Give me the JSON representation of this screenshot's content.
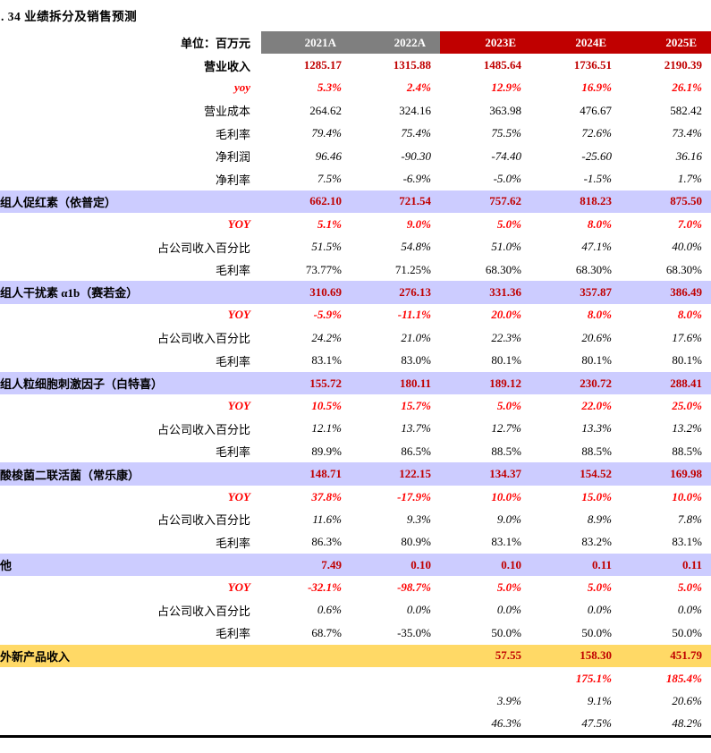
{
  "title": ". 34 业绩拆分及销售预测",
  "table": {
    "unit_label": "单位：百万元",
    "columns": [
      "2021A",
      "2022A",
      "2023E",
      "2024E",
      "2025E"
    ],
    "colors": {
      "header_actual_bg": "#7f7f7f",
      "header_estimate_bg": "#c00000",
      "value_strong": "#c00000",
      "yoy_red": "#ff0000",
      "section_bg": "#ccccff",
      "highlight_bg": "#ffd966",
      "border": "#000000"
    },
    "rows": [
      {
        "label": "营业收入",
        "type": "revenue",
        "values": [
          "1285.17",
          "1315.88",
          "1485.64",
          "1736.51",
          "2190.39"
        ]
      },
      {
        "label": "yoy",
        "type": "yoy",
        "values": [
          "5.3%",
          "2.4%",
          "12.9%",
          "16.9%",
          "26.1%"
        ]
      },
      {
        "label": "营业成本",
        "type": "plain",
        "values": [
          "264.62",
          "324.16",
          "363.98",
          "476.67",
          "582.42"
        ]
      },
      {
        "label": "毛利率",
        "type": "italic",
        "values": [
          "79.4%",
          "75.4%",
          "75.5%",
          "72.6%",
          "73.4%"
        ]
      },
      {
        "label": "净利润",
        "type": "italic",
        "values": [
          "96.46",
          "-90.30",
          "-74.40",
          "-25.60",
          "36.16"
        ]
      },
      {
        "label": "净利率",
        "type": "italic",
        "values": [
          "7.5%",
          "-6.9%",
          "-5.0%",
          "-1.5%",
          "1.7%"
        ]
      },
      {
        "label": "组人促红素（依普定）",
        "type": "section",
        "values": [
          "662.10",
          "721.54",
          "757.62",
          "818.23",
          "875.50"
        ]
      },
      {
        "label": "YOY",
        "type": "yoy",
        "values": [
          "5.1%",
          "9.0%",
          "5.0%",
          "8.0%",
          "7.0%"
        ]
      },
      {
        "label": "占公司收入百分比",
        "type": "italic",
        "values": [
          "51.5%",
          "54.8%",
          "51.0%",
          "47.1%",
          "40.0%"
        ]
      },
      {
        "label": "毛利率",
        "type": "plain",
        "values": [
          "73.77%",
          "71.25%",
          "68.30%",
          "68.30%",
          "68.30%"
        ]
      },
      {
        "label": "组人干扰素 α1b（赛若金）",
        "type": "section",
        "values": [
          "310.69",
          "276.13",
          "331.36",
          "357.87",
          "386.49"
        ]
      },
      {
        "label": "YOY",
        "type": "yoy",
        "values": [
          "-5.9%",
          "-11.1%",
          "20.0%",
          "8.0%",
          "8.0%"
        ]
      },
      {
        "label": "占公司收入百分比",
        "type": "italic",
        "values": [
          "24.2%",
          "21.0%",
          "22.3%",
          "20.6%",
          "17.6%"
        ]
      },
      {
        "label": "毛利率",
        "type": "plain",
        "values": [
          "83.1%",
          "83.0%",
          "80.1%",
          "80.1%",
          "80.1%"
        ]
      },
      {
        "label": "组人粒细胞刺激因子（白特喜）",
        "type": "section",
        "values": [
          "155.72",
          "180.11",
          "189.12",
          "230.72",
          "288.41"
        ]
      },
      {
        "label": "YOY",
        "type": "yoy",
        "values": [
          "10.5%",
          "15.7%",
          "5.0%",
          "22.0%",
          "25.0%"
        ]
      },
      {
        "label": "占公司收入百分比",
        "type": "italic",
        "values": [
          "12.1%",
          "13.7%",
          "12.7%",
          "13.3%",
          "13.2%"
        ]
      },
      {
        "label": "毛利率",
        "type": "plain",
        "values": [
          "89.9%",
          "86.5%",
          "88.5%",
          "88.5%",
          "88.5%"
        ]
      },
      {
        "label": "酸梭菌二联活菌（常乐康）",
        "type": "section",
        "values": [
          "148.71",
          "122.15",
          "134.37",
          "154.52",
          "169.98"
        ]
      },
      {
        "label": "YOY",
        "type": "yoy",
        "values": [
          "37.8%",
          "-17.9%",
          "10.0%",
          "15.0%",
          "10.0%"
        ]
      },
      {
        "label": "占公司收入百分比",
        "type": "italic",
        "values": [
          "11.6%",
          "9.3%",
          "9.0%",
          "8.9%",
          "7.8%"
        ]
      },
      {
        "label": "毛利率",
        "type": "plain",
        "values": [
          "86.3%",
          "80.9%",
          "83.1%",
          "83.2%",
          "83.1%"
        ]
      },
      {
        "label": "他",
        "type": "section",
        "values": [
          "7.49",
          "0.10",
          "0.10",
          "0.11",
          "0.11"
        ]
      },
      {
        "label": "YOY",
        "type": "yoy",
        "values": [
          "-32.1%",
          "-98.7%",
          "5.0%",
          "5.0%",
          "5.0%"
        ]
      },
      {
        "label": "占公司收入百分比",
        "type": "italic",
        "values": [
          "0.6%",
          "0.0%",
          "0.0%",
          "0.0%",
          "0.0%"
        ]
      },
      {
        "label": "毛利率",
        "type": "plain",
        "values": [
          "68.7%",
          "-35.0%",
          "50.0%",
          "50.0%",
          "50.0%"
        ]
      },
      {
        "label": "外新产品收入",
        "type": "section-yellow",
        "values": [
          "",
          "",
          "57.55",
          "158.30",
          "451.79"
        ]
      },
      {
        "label": "",
        "type": "yoy",
        "values": [
          "",
          "",
          "",
          "175.1%",
          "185.4%"
        ]
      },
      {
        "label": "",
        "type": "italic",
        "values": [
          "",
          "",
          "3.9%",
          "9.1%",
          "20.6%"
        ]
      },
      {
        "label": "",
        "type": "italic",
        "values": [
          "",
          "",
          "46.3%",
          "47.5%",
          "48.2%"
        ]
      }
    ]
  }
}
